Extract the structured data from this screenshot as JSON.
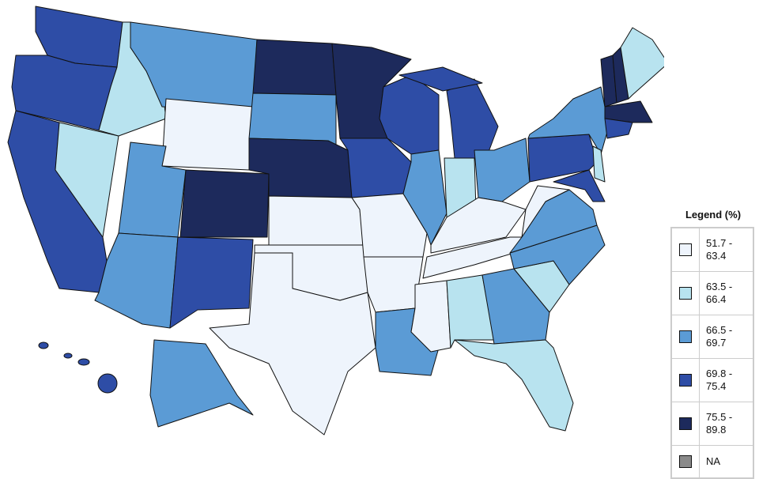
{
  "legend": {
    "title": "Legend (%)",
    "items": [
      {
        "label": "51.7 - 63.4",
        "color": "#eef4fc"
      },
      {
        "label": "63.5 - 66.4",
        "color": "#b8e3ef"
      },
      {
        "label": "66.5 - 69.7",
        "color": "#5b9bd5"
      },
      {
        "label": "69.8 - 75.4",
        "color": "#2e4da6"
      },
      {
        "label": "75.5 - 89.8",
        "color": "#1d2a5c"
      },
      {
        "label": "NA",
        "color": "#8a8a8a"
      }
    ]
  }
}
